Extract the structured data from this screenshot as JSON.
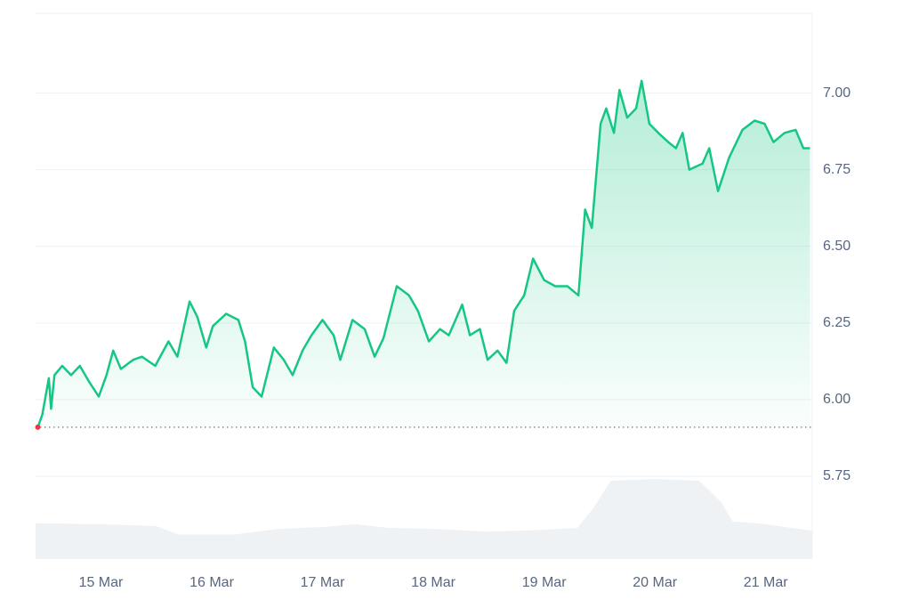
{
  "chart_data": {
    "type": "line",
    "x": [
      14.43,
      14.47,
      14.53,
      14.55,
      14.58,
      14.65,
      14.73,
      14.81,
      14.89,
      14.98,
      15.05,
      15.11,
      15.18,
      15.29,
      15.37,
      15.49,
      15.61,
      15.69,
      15.8,
      15.87,
      15.95,
      16.01,
      16.13,
      16.24,
      16.3,
      16.37,
      16.45,
      16.56,
      16.65,
      16.73,
      16.82,
      16.9,
      17.0,
      17.1,
      17.16,
      17.27,
      17.38,
      17.47,
      17.55,
      17.67,
      17.78,
      17.86,
      17.96,
      18.06,
      18.14,
      18.26,
      18.33,
      18.42,
      18.49,
      18.58,
      18.66,
      18.73,
      18.82,
      18.9,
      19.0,
      19.1,
      19.21,
      19.31,
      19.37,
      19.43,
      19.51,
      19.56,
      19.63,
      19.68,
      19.75,
      19.83,
      19.88,
      19.95,
      20.03,
      20.12,
      20.19,
      20.25,
      20.31,
      20.43,
      20.49,
      20.57,
      20.67,
      20.79,
      20.9,
      20.99,
      21.07,
      21.17,
      21.27,
      21.34,
      21.4
    ],
    "series": [
      {
        "color": "#16c784",
        "values": [
          5.91,
          5.95,
          6.07,
          5.97,
          6.08,
          6.11,
          6.08,
          6.11,
          6.06,
          6.01,
          6.08,
          6.16,
          6.1,
          6.13,
          6.14,
          6.11,
          6.19,
          6.14,
          6.32,
          6.27,
          6.17,
          6.24,
          6.28,
          6.26,
          6.19,
          6.04,
          6.01,
          6.17,
          6.13,
          6.08,
          6.16,
          6.21,
          6.26,
          6.21,
          6.13,
          6.26,
          6.23,
          6.14,
          6.2,
          6.37,
          6.34,
          6.29,
          6.19,
          6.23,
          6.21,
          6.31,
          6.21,
          6.23,
          6.13,
          6.16,
          6.12,
          6.29,
          6.34,
          6.46,
          6.39,
          6.37,
          6.37,
          6.34,
          6.62,
          6.56,
          6.9,
          6.95,
          6.87,
          7.01,
          6.92,
          6.95,
          7.04,
          6.9,
          6.87,
          6.84,
          6.82,
          6.87,
          6.75,
          6.77,
          6.82,
          6.68,
          6.79,
          6.88,
          6.91,
          6.9,
          6.84,
          6.87,
          6.88,
          6.82,
          6.82
        ]
      }
    ],
    "baseline": 5.91,
    "volume": {
      "color": "#eff2f5",
      "x": [
        14.41,
        15.0,
        15.5,
        15.7,
        16.2,
        16.6,
        17.0,
        17.3,
        17.6,
        18.0,
        18.5,
        19.0,
        19.3,
        19.45,
        19.6,
        20.0,
        20.4,
        20.6,
        20.7,
        21.0,
        21.42
      ],
      "values": [
        38,
        37,
        35,
        26,
        26,
        32,
        34,
        37,
        33,
        32,
        29,
        31,
        33,
        55,
        83,
        85,
        83,
        60,
        40,
        37,
        30
      ]
    },
    "xlim": [
      14.41,
      21.42
    ],
    "xticks": [
      {
        "value": 15,
        "label": "15 Mar"
      },
      {
        "value": 16,
        "label": "16 Mar"
      },
      {
        "value": 17,
        "label": "17 Mar"
      },
      {
        "value": 18,
        "label": "18 Mar"
      },
      {
        "value": 19,
        "label": "19 Mar"
      },
      {
        "value": 20,
        "label": "20 Mar"
      },
      {
        "value": 21,
        "label": "21 Mar"
      }
    ],
    "ylim": [
      5.48,
      7.26
    ],
    "yticks": [
      5.75,
      {
        "value": 6,
        "label": "6.00"
      },
      6.25,
      {
        "value": 6.5,
        "label": "6.50"
      },
      6.75,
      {
        "value": 7,
        "label": "7.00"
      }
    ],
    "grid": true
  }
}
